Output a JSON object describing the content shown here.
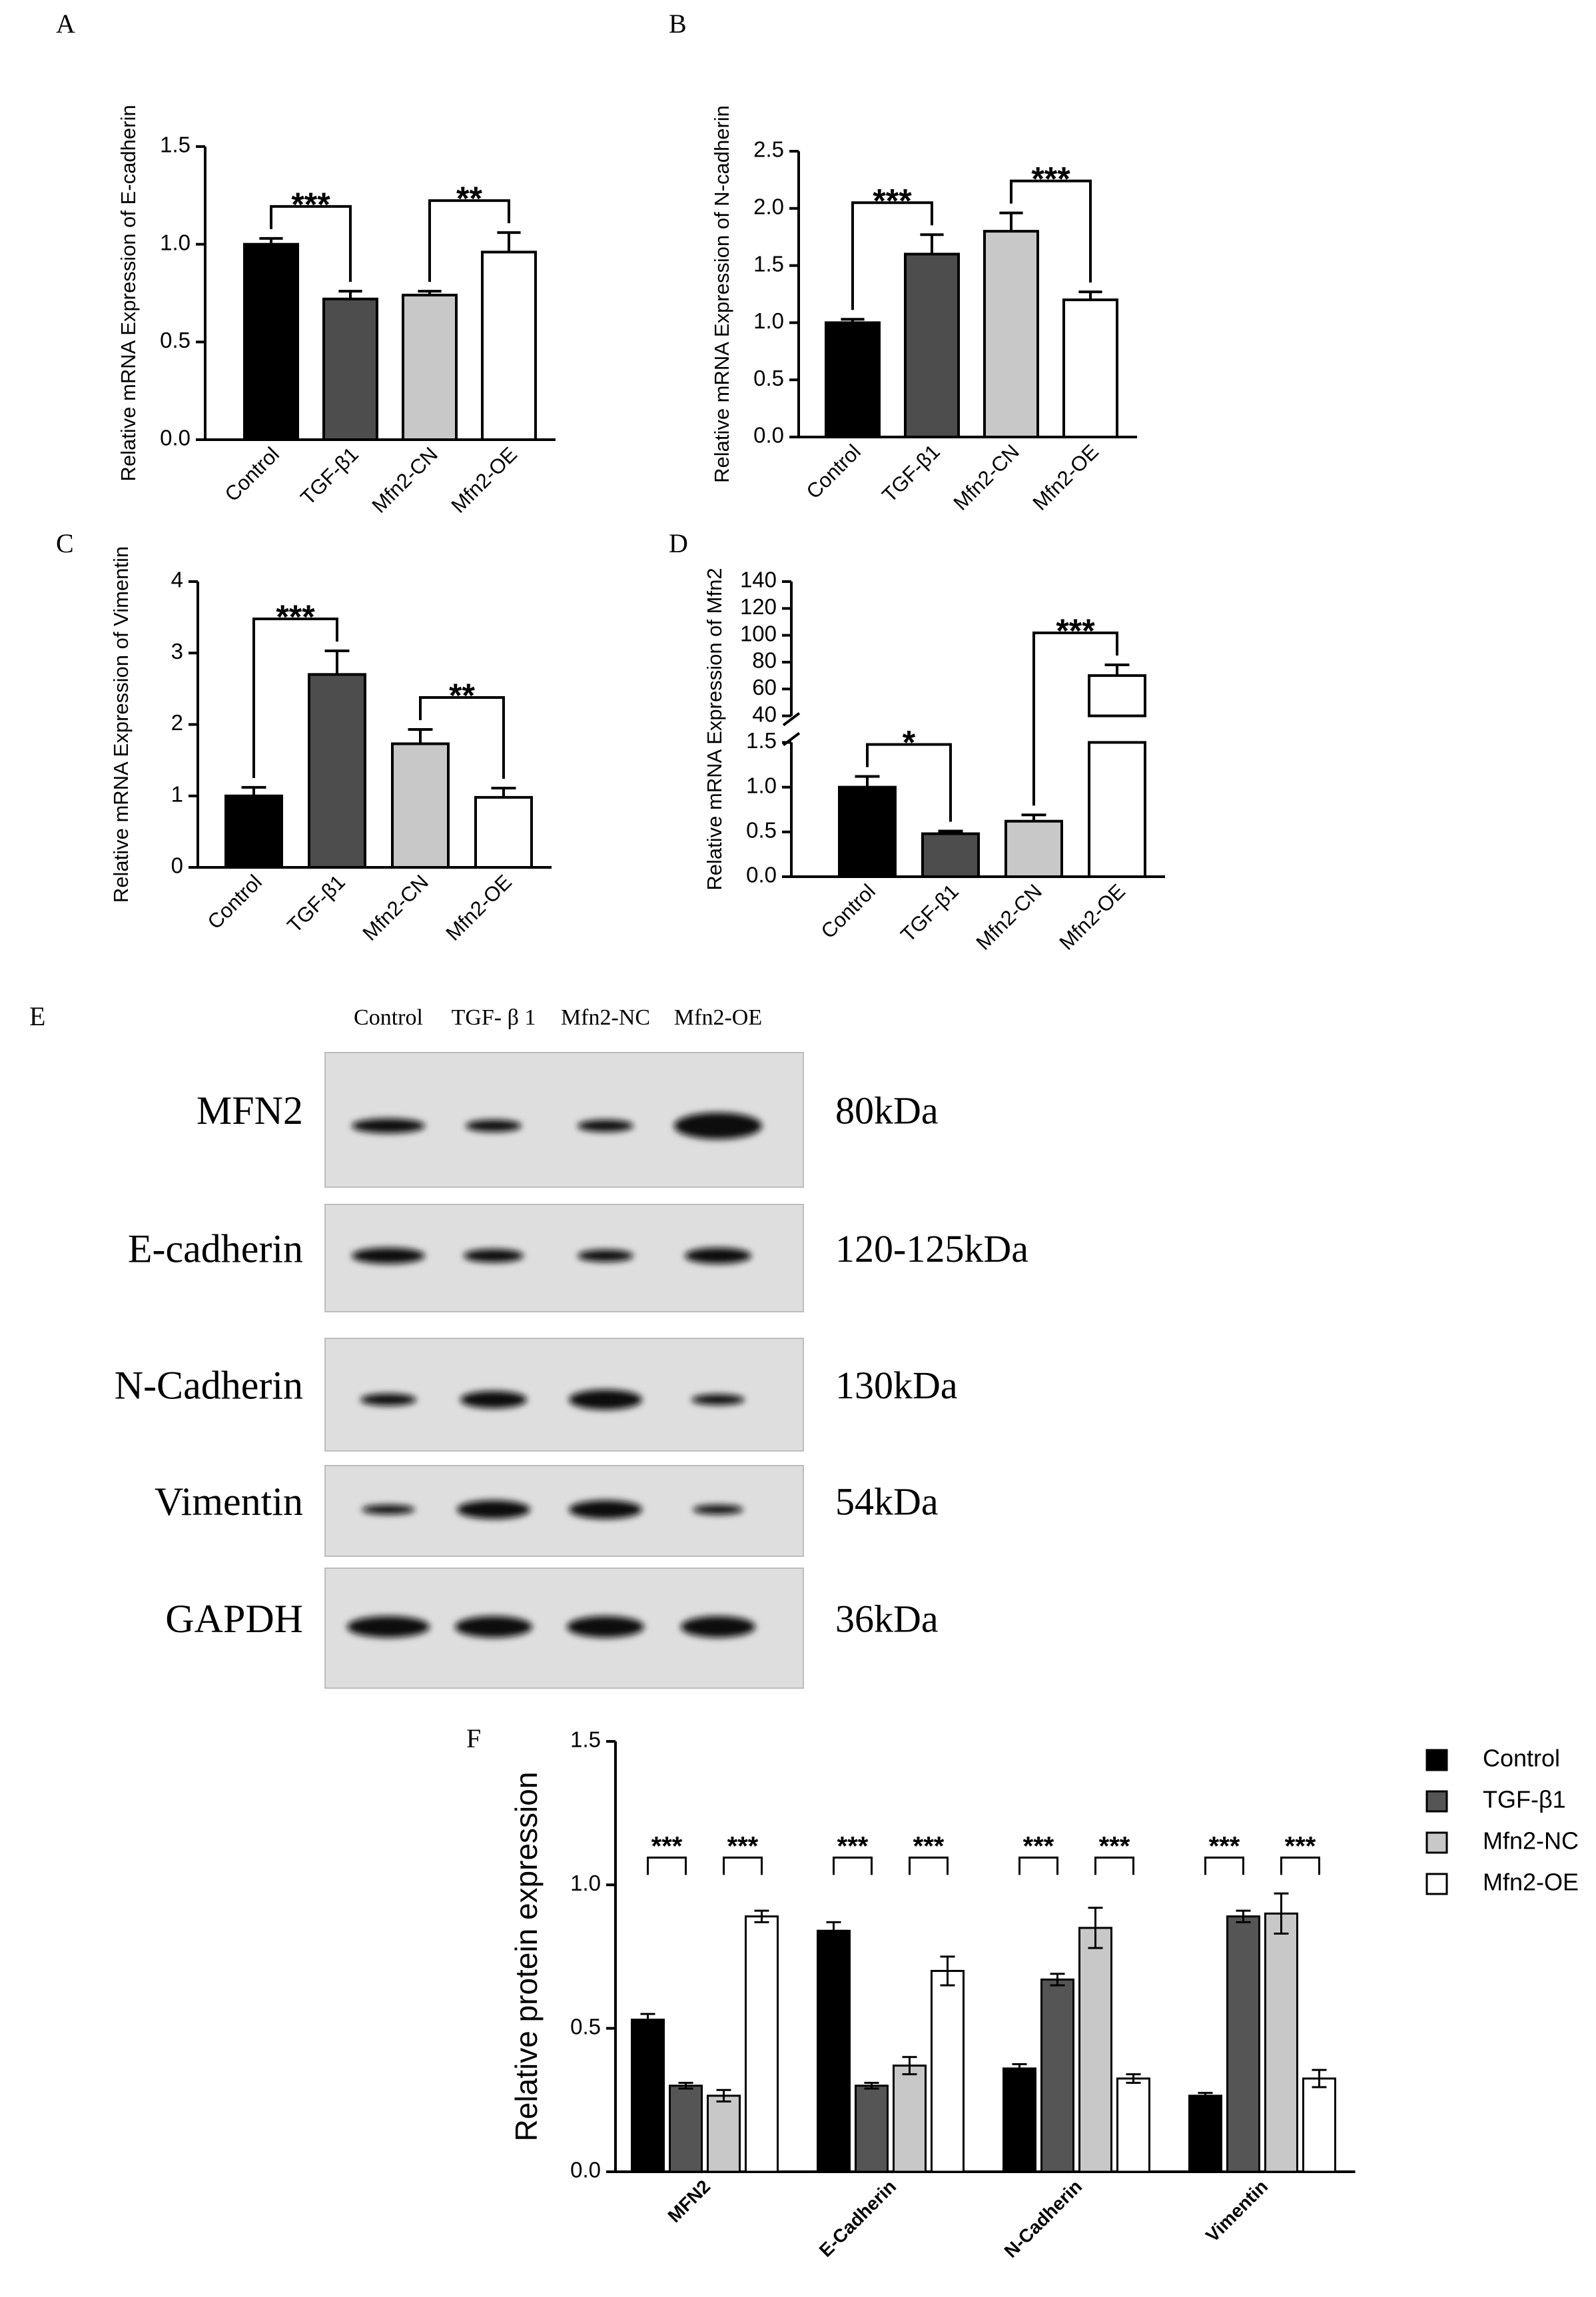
{
  "chart_data": [
    {
      "panel": "A",
      "type": "bar",
      "y_label": "Relative mRNA Expression of E-cadherin",
      "categories": [
        "Control",
        "TGF-β1",
        "Mfn2-CN",
        "Mfn2-OE"
      ],
      "values": [
        1.0,
        0.72,
        0.74,
        0.96
      ],
      "errors": [
        0.03,
        0.04,
        0.02,
        0.1
      ],
      "colors": [
        "#000000",
        "#4d4d4d",
        "#c8c8c8",
        "#ffffff"
      ],
      "ylim": [
        0,
        1.5
      ],
      "yticks": [
        {
          "value": 0,
          "label": "0.0"
        },
        0.5,
        {
          "value": 1,
          "label": "1.0"
        },
        1.5
      ],
      "significance": [
        {
          "from": 0,
          "to": 1,
          "label": "***"
        },
        {
          "from": 2,
          "to": 3,
          "label": "**"
        }
      ]
    },
    {
      "panel": "B",
      "type": "bar",
      "y_label": "Relative mRNA Expression of N-cadherin",
      "categories": [
        "Control",
        "TGF-β1",
        "Mfn2-CN",
        "Mfn2-OE"
      ],
      "values": [
        1.0,
        1.6,
        1.8,
        1.2
      ],
      "errors": [
        0.03,
        0.17,
        0.16,
        0.07
      ],
      "colors": [
        "#000000",
        "#4d4d4d",
        "#c8c8c8",
        "#ffffff"
      ],
      "ylim": [
        0,
        2.5
      ],
      "yticks": [
        {
          "value": 0,
          "label": "0.0"
        },
        0.5,
        {
          "value": 1,
          "label": "1.0"
        },
        1.5,
        {
          "value": 2,
          "label": "2.0"
        },
        2.5
      ],
      "significance": [
        {
          "from": 0,
          "to": 1,
          "label": "***"
        },
        {
          "from": 2,
          "to": 3,
          "label": "***"
        }
      ]
    },
    {
      "panel": "C",
      "type": "bar",
      "y_label": "Relative mRNA Expression of Vimentin",
      "categories": [
        "Control",
        "TGF-β1",
        "Mfn2-CN",
        "Mfn2-OE"
      ],
      "values": [
        1.0,
        2.7,
        1.73,
        0.98
      ],
      "errors": [
        0.12,
        0.33,
        0.2,
        0.13
      ],
      "colors": [
        "#000000",
        "#4d4d4d",
        "#c8c8c8",
        "#ffffff"
      ],
      "ylim": [
        0,
        4
      ],
      "yticks": [
        0,
        1,
        2,
        3,
        4
      ],
      "significance": [
        {
          "from": 0,
          "to": 1,
          "label": "***"
        },
        {
          "from": 2,
          "to": 3,
          "label": "**"
        }
      ]
    },
    {
      "panel": "D",
      "type": "bar",
      "y_label": "Relative mRNA Expression of Mfn2",
      "categories": [
        "Control",
        "TGF-β1",
        "Mfn2-CN",
        "Mfn2-OE"
      ],
      "values": [
        1.0,
        0.48,
        0.62,
        70
      ],
      "errors": [
        0.12,
        0.03,
        0.07,
        8
      ],
      "colors": [
        "#000000",
        "#4d4d4d",
        "#c8c8c8",
        "#ffffff"
      ],
      "ylim": [
        0,
        140
      ],
      "axis_break": [
        1.5,
        40
      ],
      "yticks": [
        {
          "value": 0,
          "label": "0.0"
        },
        0.5,
        {
          "value": 1,
          "label": "1.0"
        },
        1.5,
        40,
        60,
        80,
        100,
        120,
        140
      ],
      "significance": [
        {
          "from": 0,
          "to": 1,
          "label": "*"
        },
        {
          "from": 2,
          "to": 3,
          "label": "***"
        }
      ]
    },
    {
      "panel": "F",
      "type": "grouped_bar",
      "y_label": "Relative protein expression",
      "categories": [
        "MFN2",
        "E-Cadherin",
        "N-Cadherin",
        "Vimentin"
      ],
      "series": [
        {
          "name": "Control",
          "color": "#000000",
          "values": [
            0.53,
            0.84,
            0.36,
            0.265
          ],
          "errors": [
            0.02,
            0.03,
            0.015,
            0.01
          ]
        },
        {
          "name": "TGF-β1",
          "color": "#555555",
          "values": [
            0.3,
            0.3,
            0.67,
            0.89
          ],
          "errors": [
            0.01,
            0.01,
            0.02,
            0.02
          ]
        },
        {
          "name": "Mfn2-NC",
          "color": "#c8c8c8",
          "values": [
            0.265,
            0.37,
            0.85,
            0.9
          ],
          "errors": [
            0.02,
            0.03,
            0.07,
            0.07
          ]
        },
        {
          "name": "Mfn2-OE",
          "color": "#ffffff",
          "values": [
            0.89,
            0.7,
            0.325,
            0.325
          ],
          "errors": [
            0.02,
            0.05,
            0.015,
            0.03
          ]
        }
      ],
      "ylim": [
        0,
        1.5
      ],
      "yticks": [
        {
          "value": 0,
          "label": "0.0"
        },
        0.5,
        {
          "value": 1,
          "label": "1.0"
        },
        1.5
      ],
      "legend": "right",
      "significance": [
        {
          "group": 0,
          "from": 0,
          "to": 1,
          "label": "***"
        },
        {
          "group": 0,
          "from": 2,
          "to": 3,
          "label": "***"
        },
        {
          "group": 1,
          "from": 0,
          "to": 1,
          "label": "***"
        },
        {
          "group": 1,
          "from": 2,
          "to": 3,
          "label": "***"
        },
        {
          "group": 2,
          "from": 0,
          "to": 1,
          "label": "***"
        },
        {
          "group": 2,
          "from": 2,
          "to": 3,
          "label": "***"
        },
        {
          "group": 3,
          "from": 0,
          "to": 1,
          "label": "***"
        },
        {
          "group": 3,
          "from": 2,
          "to": 3,
          "label": "***"
        }
      ]
    }
  ],
  "blot": {
    "panel": "E",
    "lanes": [
      "Control",
      "TGF- β 1",
      "Mfn2-NC",
      "Mfn2-OE"
    ],
    "rows": [
      {
        "protein": "MFN2",
        "size": "80kDa"
      },
      {
        "protein": "E-cadherin",
        "size": "120-125kDa"
      },
      {
        "protein": "N-Cadherin",
        "size": "130kDa"
      },
      {
        "protein": "Vimentin",
        "size": "54kDa"
      },
      {
        "protein": "GAPDH",
        "size": "36kDa"
      }
    ]
  }
}
